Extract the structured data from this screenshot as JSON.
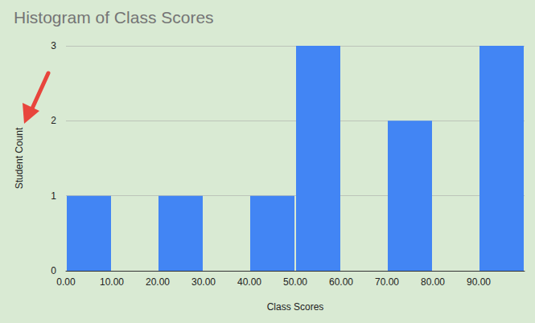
{
  "chart_data": {
    "type": "histogram",
    "title": "Histogram of Class Scores",
    "x_label": "Class Scores",
    "y_label": "Student Count",
    "bins": [
      0,
      10,
      20,
      30,
      40,
      50,
      60,
      70,
      80,
      90,
      100
    ],
    "values": [
      1,
      0,
      1,
      0,
      1,
      3,
      0,
      2,
      0,
      3
    ],
    "color": "#4285f4",
    "xlim": [
      0,
      100
    ],
    "xticks": [
      {
        "value": 0,
        "label": "0.00"
      },
      {
        "value": 10,
        "label": "10.00"
      },
      {
        "value": 20,
        "label": "20.00"
      },
      {
        "value": 30,
        "label": "30.00"
      },
      {
        "value": 40,
        "label": "40.00"
      },
      {
        "value": 50,
        "label": "50.00"
      },
      {
        "value": 60,
        "label": "60.00"
      },
      {
        "value": 70,
        "label": "70.00"
      },
      {
        "value": 80,
        "label": "80.00"
      },
      {
        "value": 90,
        "label": "90.00"
      }
    ],
    "ylim": [
      0,
      3
    ],
    "yticks": [
      0,
      1,
      2,
      3
    ],
    "grid": true
  }
}
